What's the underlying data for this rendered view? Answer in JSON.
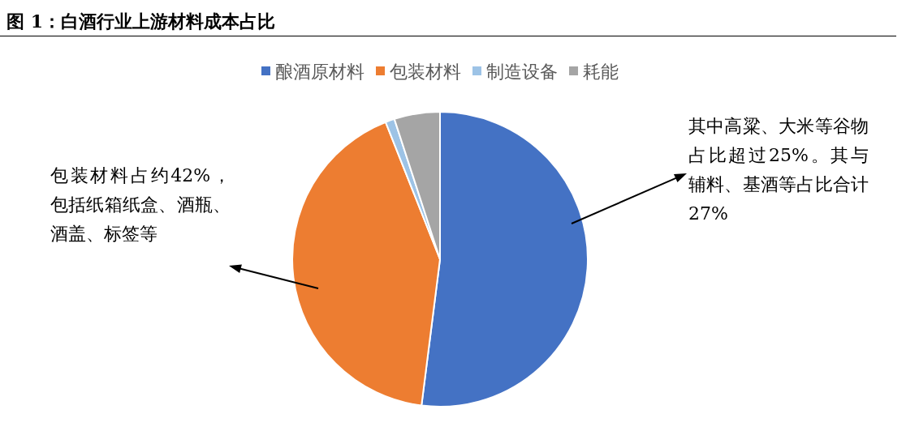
{
  "chart_data": {
    "type": "pie",
    "title": "图 1：白酒行业上游材料成本占比",
    "categories": [
      "酿酒原材料",
      "包装材料",
      "制造设备",
      "耗能"
    ],
    "values": [
      52,
      42,
      1,
      5
    ],
    "colors": [
      "#4472c4",
      "#ed7d31",
      "#9dc3e6",
      "#a5a5a5"
    ],
    "legend": "top",
    "annotations": [
      "其中高粱、大米等谷物占比超过25%。其与辅料、基酒等占比合计27%",
      "包装材料占约42%，包括纸箱纸盒、酒瓶、酒盖、标签等"
    ]
  }
}
